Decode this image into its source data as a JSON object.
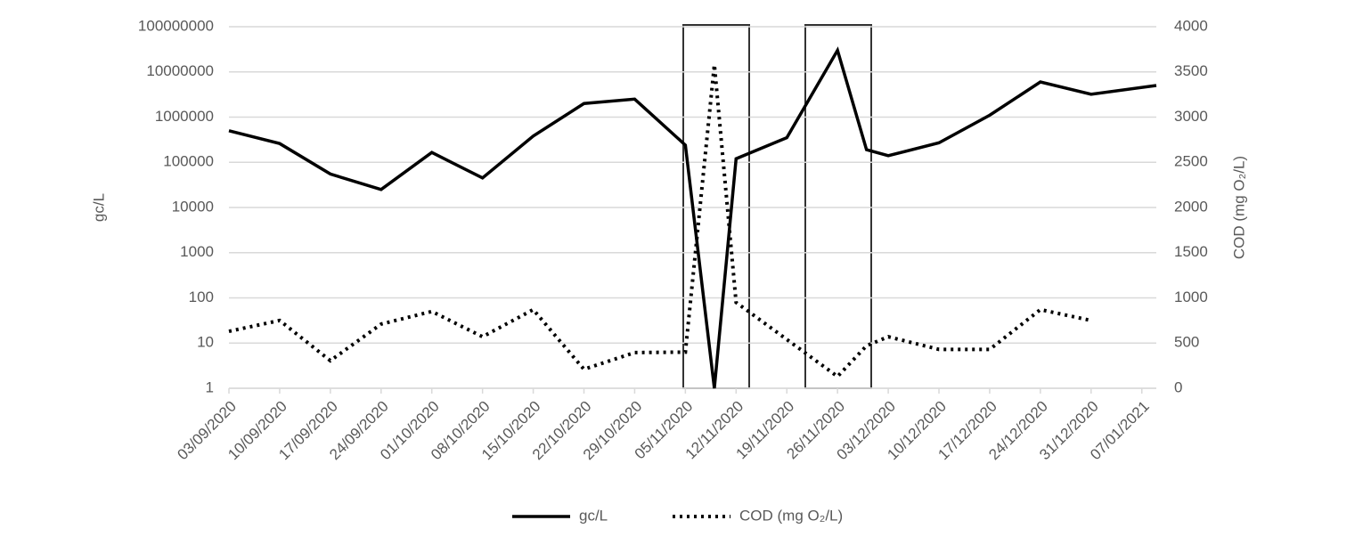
{
  "chart_data": {
    "type": "line",
    "ylabel": "gc/L",
    "y2label": "COD (mg O₂/L)",
    "ylog": true,
    "ylim": [
      1,
      100000000
    ],
    "yticks": [
      1,
      10,
      100,
      1000,
      10000,
      100000,
      1000000,
      10000000,
      100000000
    ],
    "y2lim": [
      0,
      4000
    ],
    "y2ticks": [
      0,
      500,
      1000,
      1500,
      2000,
      2500,
      3000,
      3500,
      4000
    ],
    "xlim": [
      "03/09/2020",
      "09/01/2021"
    ],
    "xticks": [
      "03/09/2020",
      "10/09/2020",
      "17/09/2020",
      "24/09/2020",
      "01/10/2020",
      "08/10/2020",
      "15/10/2020",
      "22/10/2020",
      "29/10/2020",
      "05/11/2020",
      "12/11/2020",
      "19/11/2020",
      "26/11/2020",
      "03/12/2020",
      "10/12/2020",
      "17/12/2020",
      "24/12/2020",
      "31/12/2020",
      "07/01/2021"
    ],
    "grid": true,
    "legend": "bottom",
    "series": [
      {
        "name": "gc/L",
        "color": "#000000",
        "style": "solid",
        "x": [
          "03/09/2020",
          "10/09/2020",
          "17/09/2020",
          "24/09/2020",
          "01/10/2020",
          "08/10/2020",
          "15/10/2020",
          "22/10/2020",
          "29/10/2020",
          "05/11/2020",
          "09/11/2020",
          "12/11/2020",
          "19/11/2020",
          "26/11/2020",
          "30/11/2020",
          "03/12/2020",
          "10/12/2020",
          "17/12/2020",
          "24/12/2020",
          "31/12/2020",
          "09/01/2021"
        ],
        "values": [
          500000,
          260000,
          55000,
          25000,
          165000,
          45000,
          380000,
          2000000,
          2500000,
          240000,
          1,
          120000,
          350000,
          30000000,
          190000,
          140000,
          270000,
          1100000,
          6000000,
          3200000,
          5000000
        ]
      },
      {
        "name": "COD (mg O₂/L)",
        "color": "#000000",
        "style": "dotted",
        "axis": "y2",
        "x": [
          "03/09/2020",
          "10/09/2020",
          "17/09/2020",
          "24/09/2020",
          "01/10/2020",
          "08/10/2020",
          "15/10/2020",
          "22/10/2020",
          "29/10/2020",
          "05/11/2020",
          "09/11/2020",
          "12/11/2020",
          "26/11/2020",
          "30/11/2020",
          "03/12/2020",
          "10/12/2020",
          "17/12/2020",
          "24/12/2020",
          "31/12/2020"
        ],
        "values": [
          630,
          750,
          305,
          710,
          850,
          570,
          870,
          210,
          395,
          400,
          3580,
          950,
          130,
          470,
          570,
          430,
          430,
          870,
          750
        ]
      }
    ]
  }
}
